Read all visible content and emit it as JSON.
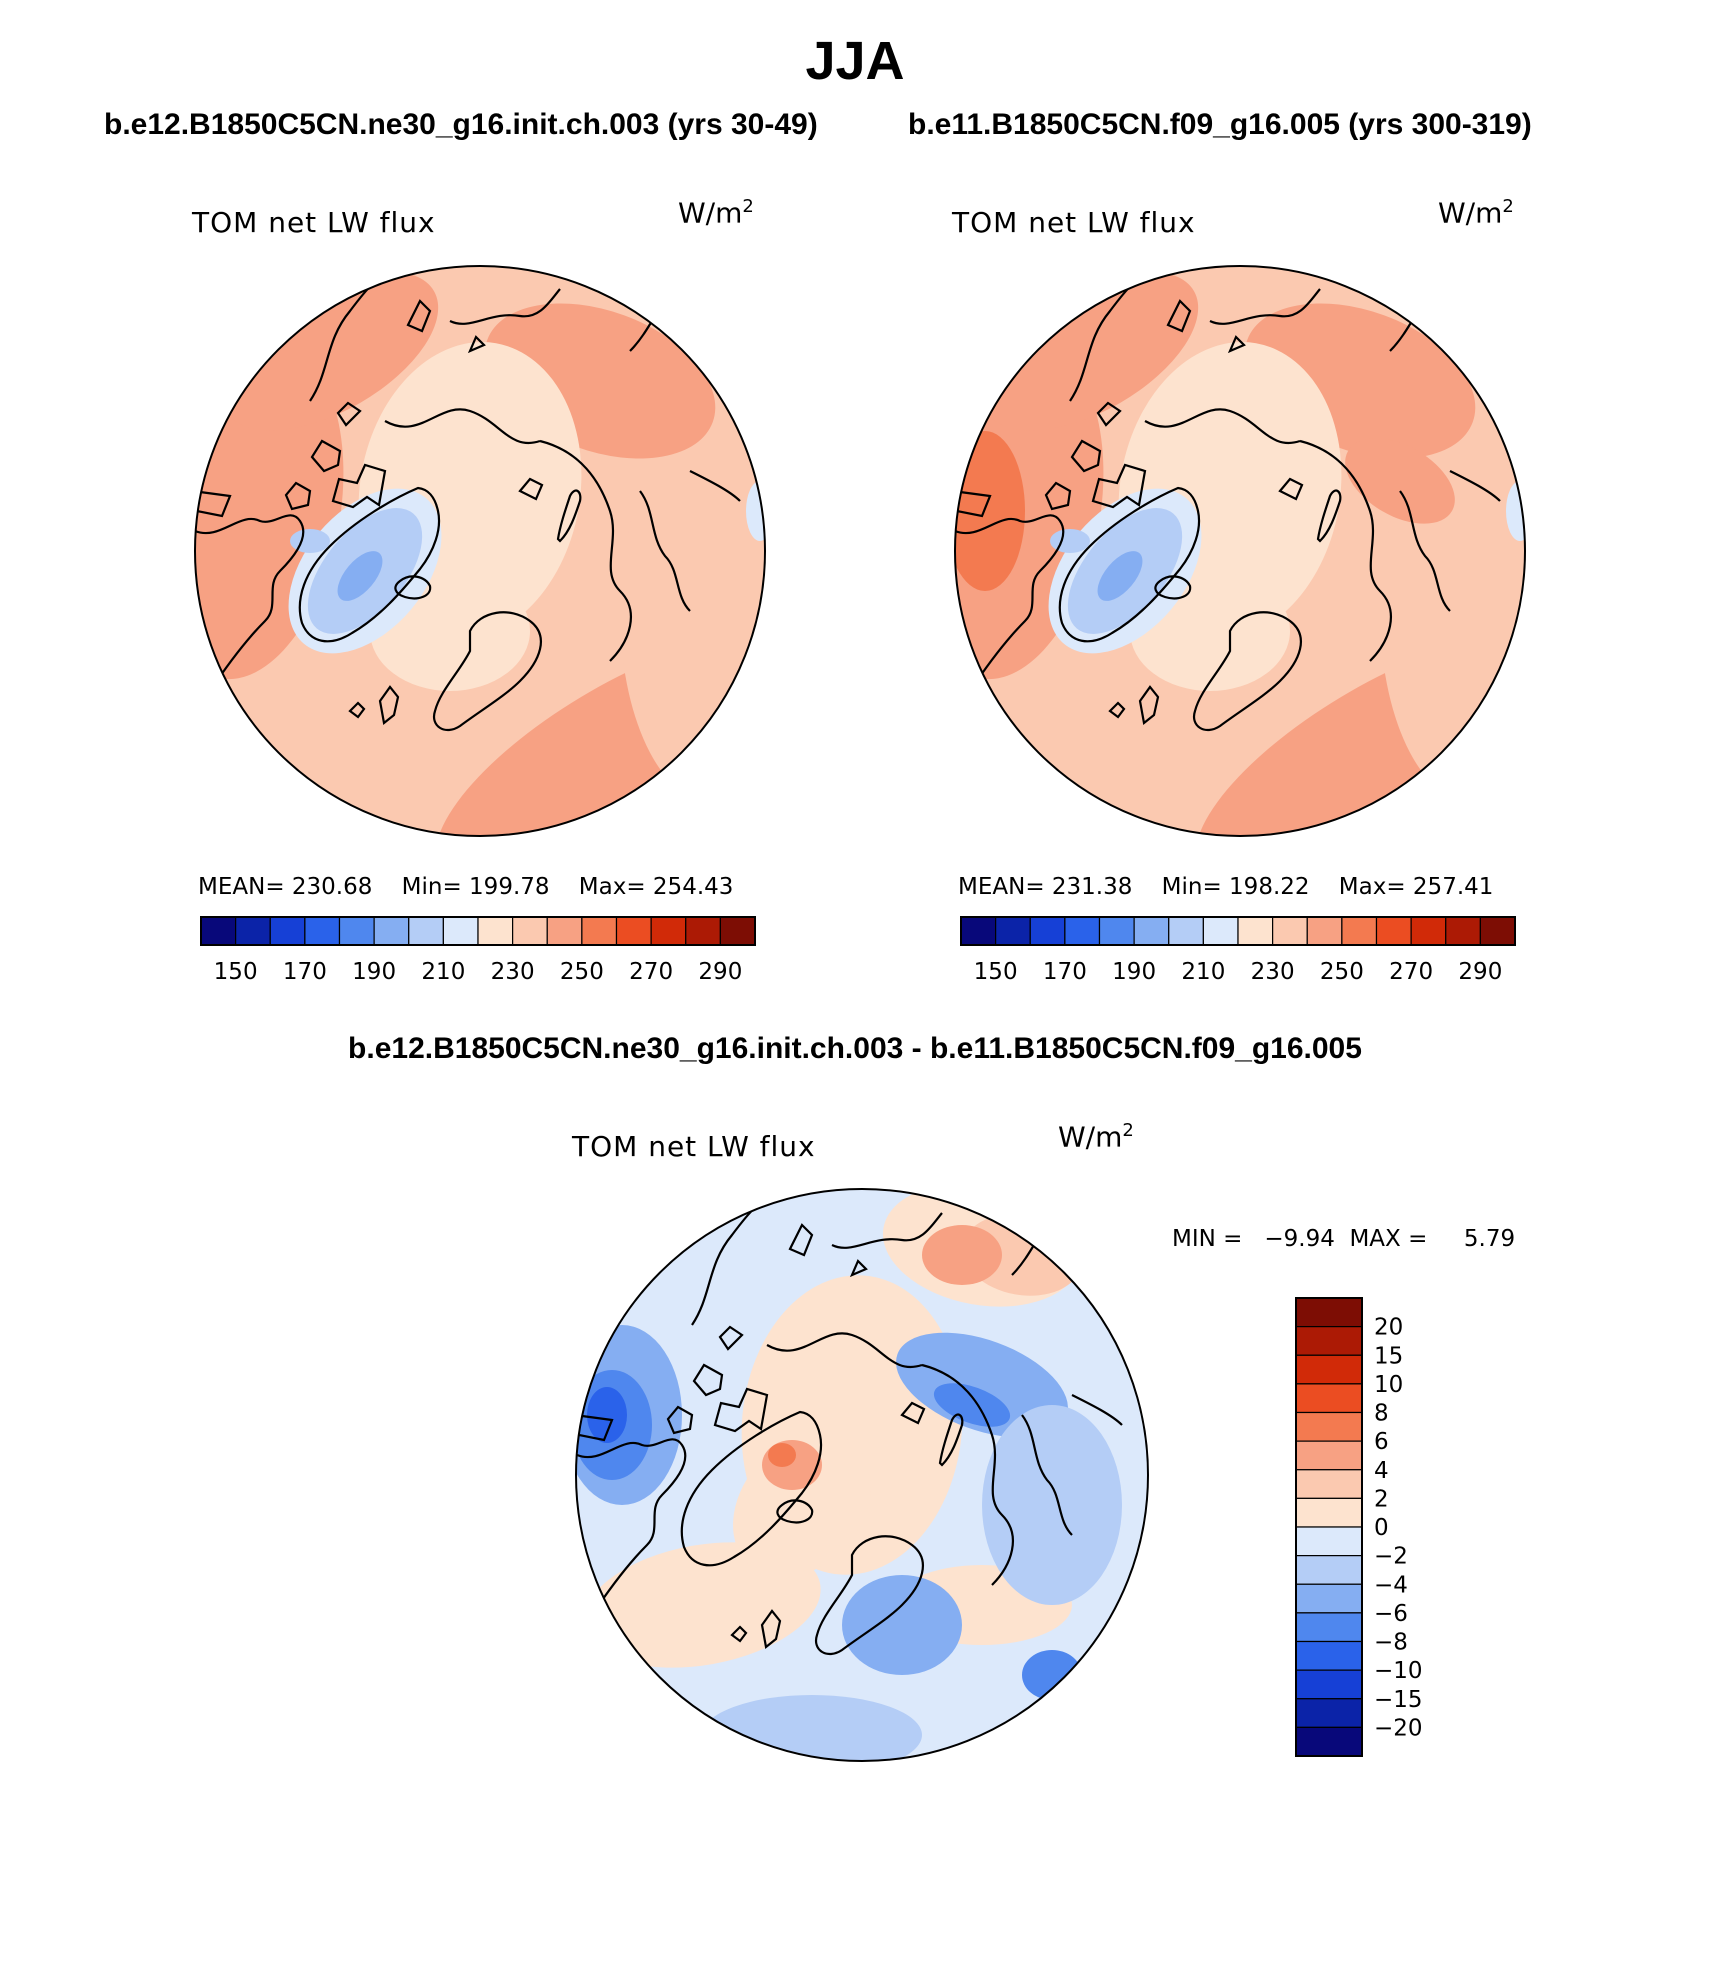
{
  "title": "JJA",
  "panels": [
    {
      "case_name": "b.e12.B1850C5CN.ne30_g16.init.ch.003 (yrs 30-49)",
      "variable": "TOM net LW flux",
      "units_base": "W/m",
      "units_exp": "2",
      "mean_label": "MEAN=",
      "mean": "230.68",
      "min_label": "Min=",
      "min": "199.78",
      "max_label": "Max=",
      "max": "254.43",
      "colorbar_ticks": [
        "150",
        "170",
        "190",
        "210",
        "230",
        "250",
        "270",
        "290"
      ]
    },
    {
      "case_name": "b.e11.B1850C5CN.f09_g16.005 (yrs 300-319)",
      "variable": "TOM net LW flux",
      "units_base": "W/m",
      "units_exp": "2",
      "mean_label": "MEAN=",
      "mean": "231.38",
      "min_label": "Min=",
      "min": "198.22",
      "max_label": "Max=",
      "max": "257.41",
      "colorbar_ticks": [
        "150",
        "170",
        "190",
        "210",
        "230",
        "250",
        "270",
        "290"
      ]
    }
  ],
  "difference": {
    "title": "b.e12.B1850C5CN.ne30_g16.init.ch.003 - b.e11.B1850C5CN.f09_g16.005",
    "variable": "TOM net LW flux",
    "units_base": "W/m",
    "units_exp": "2",
    "minmax_label": "MIN =   −9.94  MAX =     5.79",
    "colorbar_ticks": [
      "20",
      "15",
      "10",
      "8",
      "6",
      "4",
      "2",
      "0",
      "−2",
      "−4",
      "−6",
      "−8",
      "−10",
      "−15",
      "−20"
    ]
  },
  "colors": {
    "abs_scale": [
      "#08087a",
      "#0b23a8",
      "#1640d6",
      "#2a62ea",
      "#4f87ee",
      "#85aef2",
      "#b4cdf6",
      "#dce9fb",
      "#fde3cf",
      "#fbc9b0",
      "#f7a183",
      "#f37a50",
      "#eb4d22",
      "#d12a08",
      "#ac1a05",
      "#7d0d04"
    ],
    "diff_scale": [
      "#7d0d04",
      "#ac1a05",
      "#d12a08",
      "#eb4d22",
      "#f37a50",
      "#f7a183",
      "#fbc9b0",
      "#fde3cf",
      "#dce9fb",
      "#b4cdf6",
      "#85aef2",
      "#4f87ee",
      "#2a62ea",
      "#1640d6",
      "#0b23a8",
      "#08087a"
    ]
  },
  "chart_data": [
    {
      "type": "heatmap",
      "projection": "north polar stereographic",
      "title": "b.e12.B1850C5CN.ne30_g16.init.ch.003 (yrs 30-49)",
      "variable": "TOM net LW flux",
      "units": "W/m2",
      "mean": 230.68,
      "min": 199.78,
      "max": 254.43,
      "contour_levels": [
        150,
        160,
        170,
        180,
        190,
        200,
        210,
        220,
        230,
        240,
        250,
        260,
        270,
        280,
        290
      ]
    },
    {
      "type": "heatmap",
      "projection": "north polar stereographic",
      "title": "b.e11.B1850C5CN.f09_g16.005 (yrs 300-319)",
      "variable": "TOM net LW flux",
      "units": "W/m2",
      "mean": 231.38,
      "min": 198.22,
      "max": 257.41,
      "contour_levels": [
        150,
        160,
        170,
        180,
        190,
        200,
        210,
        220,
        230,
        240,
        250,
        260,
        270,
        280,
        290
      ]
    },
    {
      "type": "heatmap",
      "projection": "north polar stereographic",
      "title": "b.e12.B1850C5CN.ne30_g16.init.ch.003 - b.e11.B1850C5CN.f09_g16.005",
      "variable": "TOM net LW flux",
      "units": "W/m2",
      "min": -9.94,
      "max": 5.79,
      "contour_levels": [
        -20,
        -15,
        -10,
        -8,
        -6,
        -4,
        -2,
        0,
        2,
        4,
        6,
        8,
        10,
        15,
        20
      ]
    }
  ]
}
